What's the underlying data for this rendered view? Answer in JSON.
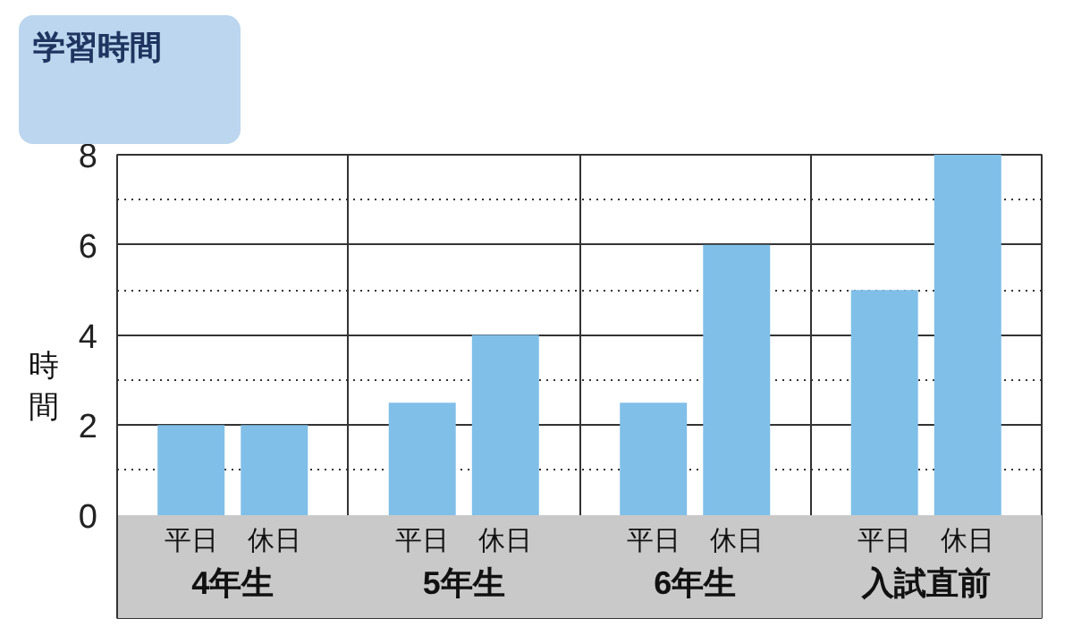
{
  "chart_data": {
    "type": "bar",
    "title": "学習時間",
    "ylabel": "時間",
    "categories": [
      "4年生",
      "5年生",
      "6年生",
      "入試直前"
    ],
    "series": [
      {
        "name": "平日",
        "color": "#80bfe8",
        "values": [
          2,
          2.5,
          2.5,
          5
        ]
      },
      {
        "name": "休日",
        "color": "#80bfe8",
        "values": [
          2,
          4,
          6,
          8
        ]
      }
    ],
    "ylim": [
      0,
      8
    ],
    "yticks": [
      0,
      {
        "value": 1,
        "label": null
      },
      2,
      {
        "value": 3,
        "label": null
      },
      4,
      {
        "value": 5,
        "label": null
      },
      6,
      {
        "value": 7,
        "label": null
      },
      8
    ],
    "grid": true
  }
}
